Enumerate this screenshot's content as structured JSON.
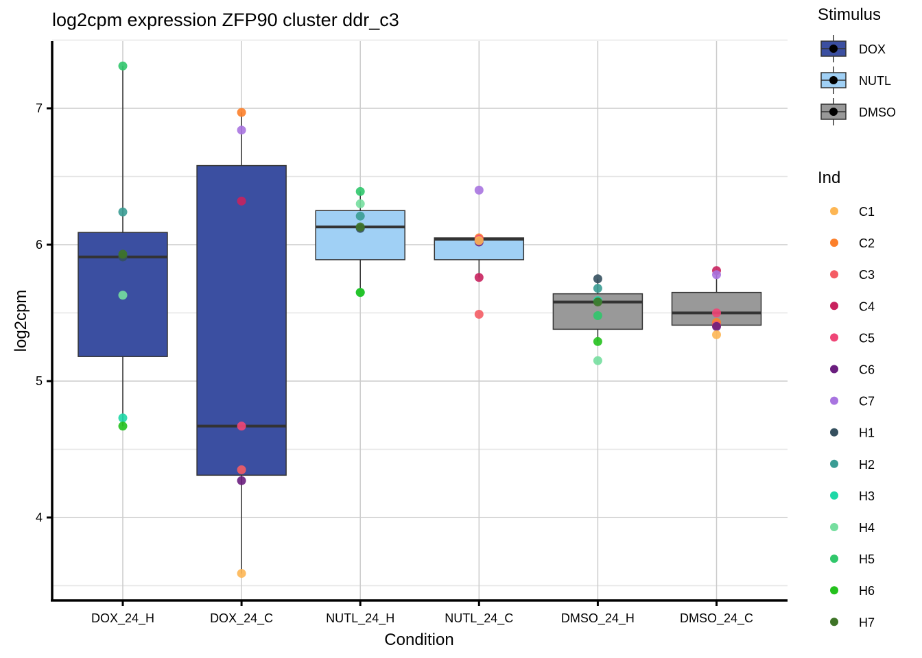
{
  "chart_data": {
    "type": "box",
    "title": "log2cpm expression ZFP90 cluster ddr_c3",
    "xlabel": "Condition",
    "ylabel": "log2cpm",
    "ylim": [
      3.45,
      7.5
    ],
    "yticks": [
      4,
      5,
      6,
      7
    ],
    "ytick_labels": [
      "4",
      "5",
      "6",
      "7"
    ],
    "grid": true,
    "categories": [
      "DOX_24_H",
      "DOX_24_C",
      "NUTL_24_H",
      "NUTL_24_C",
      "DMSO_24_H",
      "DMSO_24_C"
    ],
    "boxes": [
      {
        "condition": "DOX_24_H",
        "stimulus": "DOX",
        "min": 4.67,
        "q1": 5.18,
        "median": 5.91,
        "q3": 6.09,
        "max": 7.31
      },
      {
        "condition": "DOX_24_C",
        "stimulus": "DOX",
        "min": 3.59,
        "q1": 4.31,
        "median": 4.67,
        "q3": 6.58,
        "max": 6.97
      },
      {
        "condition": "NUTL_24_H",
        "stimulus": "NUTL",
        "min": 5.65,
        "q1": 5.89,
        "median": 6.13,
        "q3": 6.25,
        "max": 6.39
      },
      {
        "condition": "NUTL_24_C",
        "stimulus": "NUTL",
        "min": 5.76,
        "q1": 5.89,
        "median": 6.04,
        "q3": 6.05,
        "max": 6.05
      },
      {
        "condition": "DMSO_24_H",
        "stimulus": "DMSO",
        "min": 5.29,
        "q1": 5.38,
        "median": 5.58,
        "q3": 5.64,
        "max": 5.75
      },
      {
        "condition": "DMSO_24_C",
        "stimulus": "DMSO",
        "min": 5.41,
        "q1": 5.41,
        "median": 5.5,
        "q3": 5.65,
        "max": 5.81
      }
    ],
    "points": [
      {
        "condition": "DOX_24_H",
        "ind": "H5",
        "value": 7.31
      },
      {
        "condition": "DOX_24_H",
        "ind": "H2",
        "value": 6.24
      },
      {
        "condition": "DOX_24_H",
        "ind": "H1",
        "value": 5.91
      },
      {
        "condition": "DOX_24_H",
        "ind": "H7",
        "value": 5.93
      },
      {
        "condition": "DOX_24_H",
        "ind": "H4",
        "value": 5.63
      },
      {
        "condition": "DOX_24_H",
        "ind": "H3",
        "value": 4.73
      },
      {
        "condition": "DOX_24_H",
        "ind": "H6",
        "value": 4.67
      },
      {
        "condition": "DOX_24_C",
        "ind": "C2",
        "value": 6.97
      },
      {
        "condition": "DOX_24_C",
        "ind": "C7",
        "value": 6.84
      },
      {
        "condition": "DOX_24_C",
        "ind": "C4",
        "value": 6.32
      },
      {
        "condition": "DOX_24_C",
        "ind": "C5",
        "value": 4.67
      },
      {
        "condition": "DOX_24_C",
        "ind": "C3",
        "value": 4.35
      },
      {
        "condition": "DOX_24_C",
        "ind": "C6",
        "value": 4.27
      },
      {
        "condition": "DOX_24_C",
        "ind": "C1",
        "value": 3.59
      },
      {
        "condition": "NUTL_24_H",
        "ind": "H5",
        "value": 6.39
      },
      {
        "condition": "NUTL_24_H",
        "ind": "H4",
        "value": 6.3
      },
      {
        "condition": "NUTL_24_H",
        "ind": "H2",
        "value": 6.21
      },
      {
        "condition": "NUTL_24_H",
        "ind": "H1",
        "value": 6.12
      },
      {
        "condition": "NUTL_24_H",
        "ind": "H7",
        "value": 6.13
      },
      {
        "condition": "NUTL_24_H",
        "ind": "H3",
        "value": 5.65
      },
      {
        "condition": "NUTL_24_H",
        "ind": "H6",
        "value": 5.65
      },
      {
        "condition": "NUTL_24_C",
        "ind": "C7",
        "value": 6.4
      },
      {
        "condition": "NUTL_24_C",
        "ind": "C2",
        "value": 6.05
      },
      {
        "condition": "NUTL_24_C",
        "ind": "C5",
        "value": 6.04
      },
      {
        "condition": "NUTL_24_C",
        "ind": "C6",
        "value": 6.02
      },
      {
        "condition": "NUTL_24_C",
        "ind": "C1",
        "value": 6.03
      },
      {
        "condition": "NUTL_24_C",
        "ind": "C4",
        "value": 5.76
      },
      {
        "condition": "NUTL_24_C",
        "ind": "C3",
        "value": 5.49
      },
      {
        "condition": "DMSO_24_H",
        "ind": "H1",
        "value": 5.75
      },
      {
        "condition": "DMSO_24_H",
        "ind": "H2",
        "value": 5.68
      },
      {
        "condition": "DMSO_24_H",
        "ind": "H3",
        "value": 5.59
      },
      {
        "condition": "DMSO_24_H",
        "ind": "H7",
        "value": 5.58
      },
      {
        "condition": "DMSO_24_H",
        "ind": "H5",
        "value": 5.48
      },
      {
        "condition": "DMSO_24_H",
        "ind": "H6",
        "value": 5.29
      },
      {
        "condition": "DMSO_24_H",
        "ind": "H4",
        "value": 5.15
      },
      {
        "condition": "DMSO_24_C",
        "ind": "C4",
        "value": 5.81
      },
      {
        "condition": "DMSO_24_C",
        "ind": "C7",
        "value": 5.78
      },
      {
        "condition": "DMSO_24_C",
        "ind": "C5",
        "value": 5.5
      },
      {
        "condition": "DMSO_24_C",
        "ind": "C2",
        "value": 5.43
      },
      {
        "condition": "DMSO_24_C",
        "ind": "C3",
        "value": 5.41
      },
      {
        "condition": "DMSO_24_C",
        "ind": "C6",
        "value": 5.4
      },
      {
        "condition": "DMSO_24_C",
        "ind": "C1",
        "value": 5.34
      }
    ],
    "legend": {
      "position": "right",
      "stimulus": {
        "title": "Stimulus",
        "entries": [
          {
            "label": "DOX",
            "color": "#3B4FA1"
          },
          {
            "label": "NUTL",
            "color": "#A0D0F5"
          },
          {
            "label": "DMSO",
            "color": "#999999"
          }
        ]
      },
      "ind": {
        "title": "Ind",
        "entries": [
          {
            "label": "C1",
            "color": "#FDB654"
          },
          {
            "label": "C2",
            "color": "#FC7F2A"
          },
          {
            "label": "C3",
            "color": "#F45C64"
          },
          {
            "label": "C4",
            "color": "#C8225E"
          },
          {
            "label": "C5",
            "color": "#EF4677"
          },
          {
            "label": "C6",
            "color": "#6A1E7E"
          },
          {
            "label": "C7",
            "color": "#A874E0"
          },
          {
            "label": "H1",
            "color": "#35505F"
          },
          {
            "label": "H2",
            "color": "#3A9C94"
          },
          {
            "label": "H3",
            "color": "#1ED8A7"
          },
          {
            "label": "H4",
            "color": "#76DE9F"
          },
          {
            "label": "H5",
            "color": "#30C76B"
          },
          {
            "label": "H6",
            "color": "#24C11D"
          },
          {
            "label": "H7",
            "color": "#3E7427"
          }
        ]
      }
    }
  }
}
